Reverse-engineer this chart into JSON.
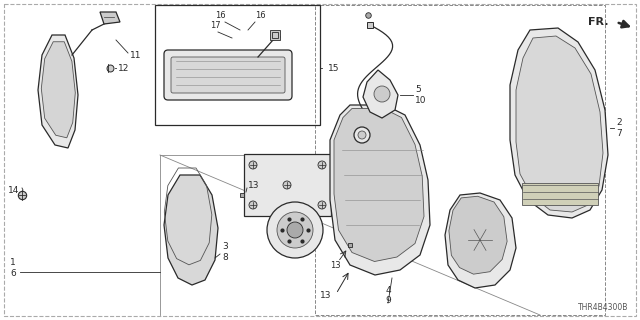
{
  "bg_color": "#ffffff",
  "diagram_code": "THR4B4300B",
  "line_dark": "#2a2a2a",
  "line_med": "#555555",
  "line_light": "#888888",
  "fill_light": "#e8e8e8",
  "fill_mid": "#cccccc",
  "fill_dark": "#aaaaaa"
}
